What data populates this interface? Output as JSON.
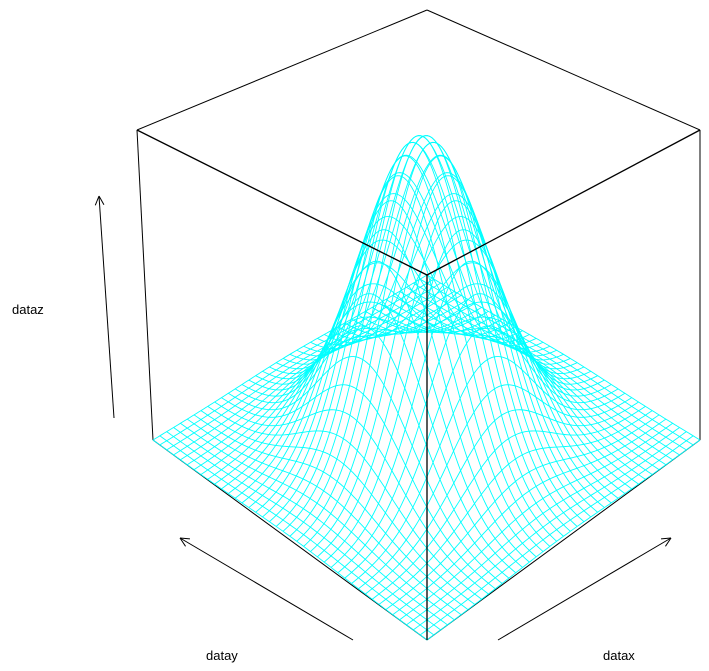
{
  "chart_data": {
    "type": "surface",
    "function": "gaussian",
    "xlabel": "datax",
    "ylabel": "datay",
    "zlabel": "dataz",
    "xlim": [
      -3,
      3
    ],
    "ylim": [
      -3,
      3
    ],
    "zlim": [
      0,
      1
    ],
    "grid_lines": 40,
    "box": true,
    "axes_arrows": true,
    "colors": {
      "mesh": "#00FFFF",
      "box": "#000000",
      "background": "#FFFFFF"
    }
  }
}
